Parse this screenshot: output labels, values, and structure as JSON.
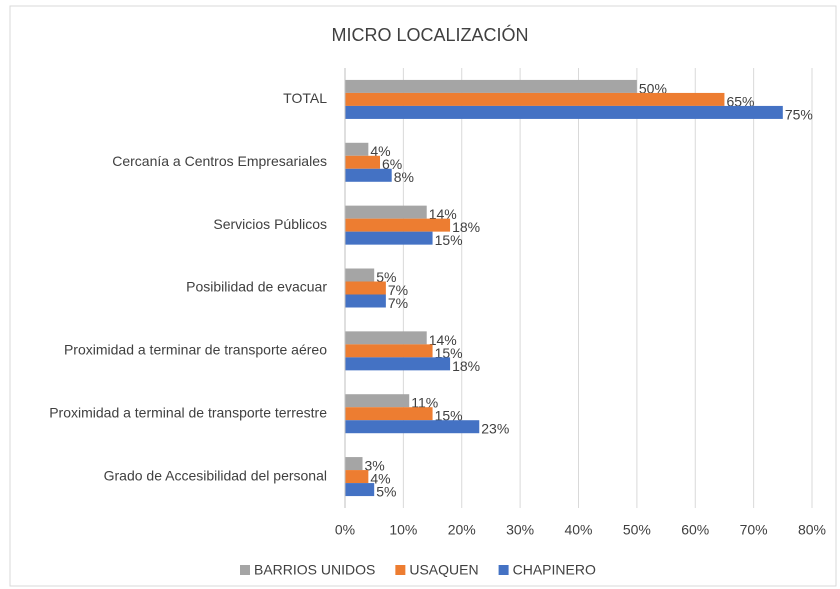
{
  "chart_data": {
    "type": "hbar",
    "title": "MICRO LOCALIZACIÓN",
    "categories": [
      "TOTAL",
      "Cercanía a Centros Empresariales",
      "Servicios Públicos",
      "Posibilidad de evacuar",
      "Proximidad a terminar de transporte aéreo",
      "Proximidad a terminal de transporte terrestre",
      "Grado de Accesibilidad del personal"
    ],
    "series": [
      {
        "name": "BARRIOS UNIDOS",
        "color": "#a5a5a5",
        "values": [
          50,
          4,
          14,
          5,
          14,
          11,
          3
        ],
        "value_labels": [
          "50%",
          "4%",
          "14%",
          "5%",
          "14%",
          "11%",
          "3%"
        ]
      },
      {
        "name": "USAQUEN",
        "color": "#ed7d31",
        "values": [
          65,
          6,
          18,
          7,
          15,
          15,
          4
        ],
        "value_labels": [
          "65%",
          "6%",
          "18%",
          "7%",
          "15%",
          "15%",
          "4%"
        ]
      },
      {
        "name": "CHAPINERO",
        "color": "#4472c4",
        "values": [
          75,
          8,
          15,
          7,
          18,
          23,
          5
        ],
        "value_labels": [
          "75%",
          "8%",
          "15%",
          "7%",
          "18%",
          "23%",
          "5%"
        ]
      }
    ],
    "xlim": [
      0,
      80
    ],
    "xticks": [
      {
        "value": 0,
        "label": "0%"
      },
      {
        "value": 10,
        "label": "10%"
      },
      {
        "value": 20,
        "label": "20%"
      },
      {
        "value": 30,
        "label": "30%"
      },
      {
        "value": 40,
        "label": "40%"
      },
      {
        "value": 50,
        "label": "50%"
      },
      {
        "value": 60,
        "label": "60%"
      },
      {
        "value": 70,
        "label": "70%"
      },
      {
        "value": 80,
        "label": "80%"
      }
    ],
    "grid": true,
    "legend": "bottom"
  }
}
